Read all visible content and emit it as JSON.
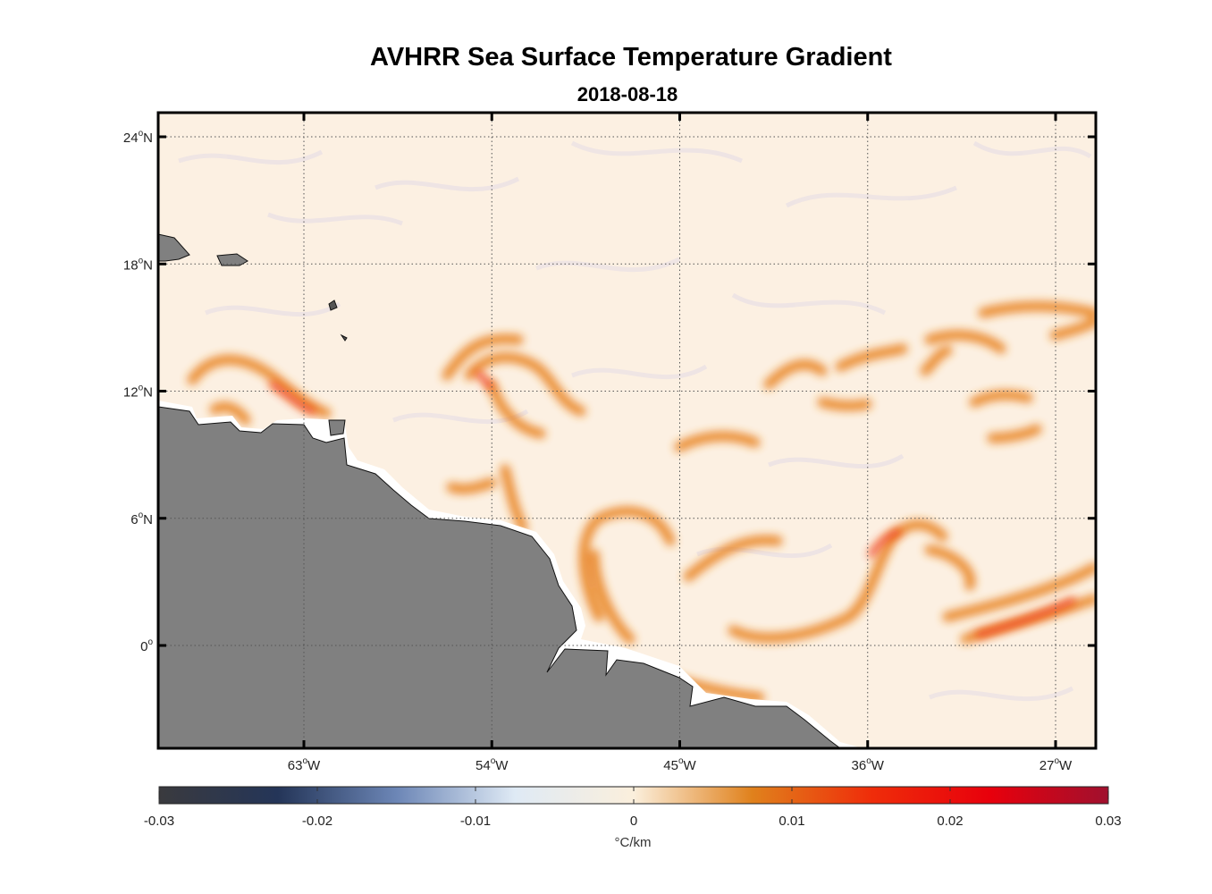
{
  "title": "AVHRR Sea Surface Temperature Gradient",
  "subtitle": "2018-08-18",
  "units_label": "°C/km",
  "map": {
    "lon_ticks": [
      {
        "value": -63,
        "label": "63",
        "hemi": "W"
      },
      {
        "value": -54,
        "label": "54",
        "hemi": "W"
      },
      {
        "value": -45,
        "label": "45",
        "hemi": "W"
      },
      {
        "value": -36,
        "label": "36",
        "hemi": "W"
      },
      {
        "value": -27,
        "label": "27",
        "hemi": "W"
      }
    ],
    "lat_ticks": [
      {
        "value": 24,
        "label": "24",
        "hemi": "N"
      },
      {
        "value": 18,
        "label": "18",
        "hemi": "N"
      },
      {
        "value": 12,
        "label": "12",
        "hemi": "N"
      },
      {
        "value": 6,
        "label": "6",
        "hemi": "N"
      },
      {
        "value": 0,
        "label": "0",
        "hemi": ""
      }
    ],
    "lon_range": [
      -70,
      -25
    ],
    "lat_range": [
      -5,
      25
    ],
    "grid": "dotted",
    "land_color": "#808080"
  },
  "colorbar": {
    "min": -0.03,
    "max": 0.03,
    "ticks": [
      {
        "value": -0.03,
        "label": "-0.03"
      },
      {
        "value": -0.02,
        "label": "-0.02"
      },
      {
        "value": -0.01,
        "label": "-0.01"
      },
      {
        "value": 0,
        "label": "0"
      },
      {
        "value": 0.01,
        "label": "0.01"
      },
      {
        "value": 0.02,
        "label": "0.02"
      },
      {
        "value": 0.03,
        "label": "0.03"
      }
    ],
    "colors": [
      "#3a3a3e",
      "#243558",
      "#6c86b6",
      "#dfeaf5",
      "#fbefdc",
      "#e0811c",
      "#ef2d0a",
      "#e8000c",
      "#a0102e"
    ]
  }
}
